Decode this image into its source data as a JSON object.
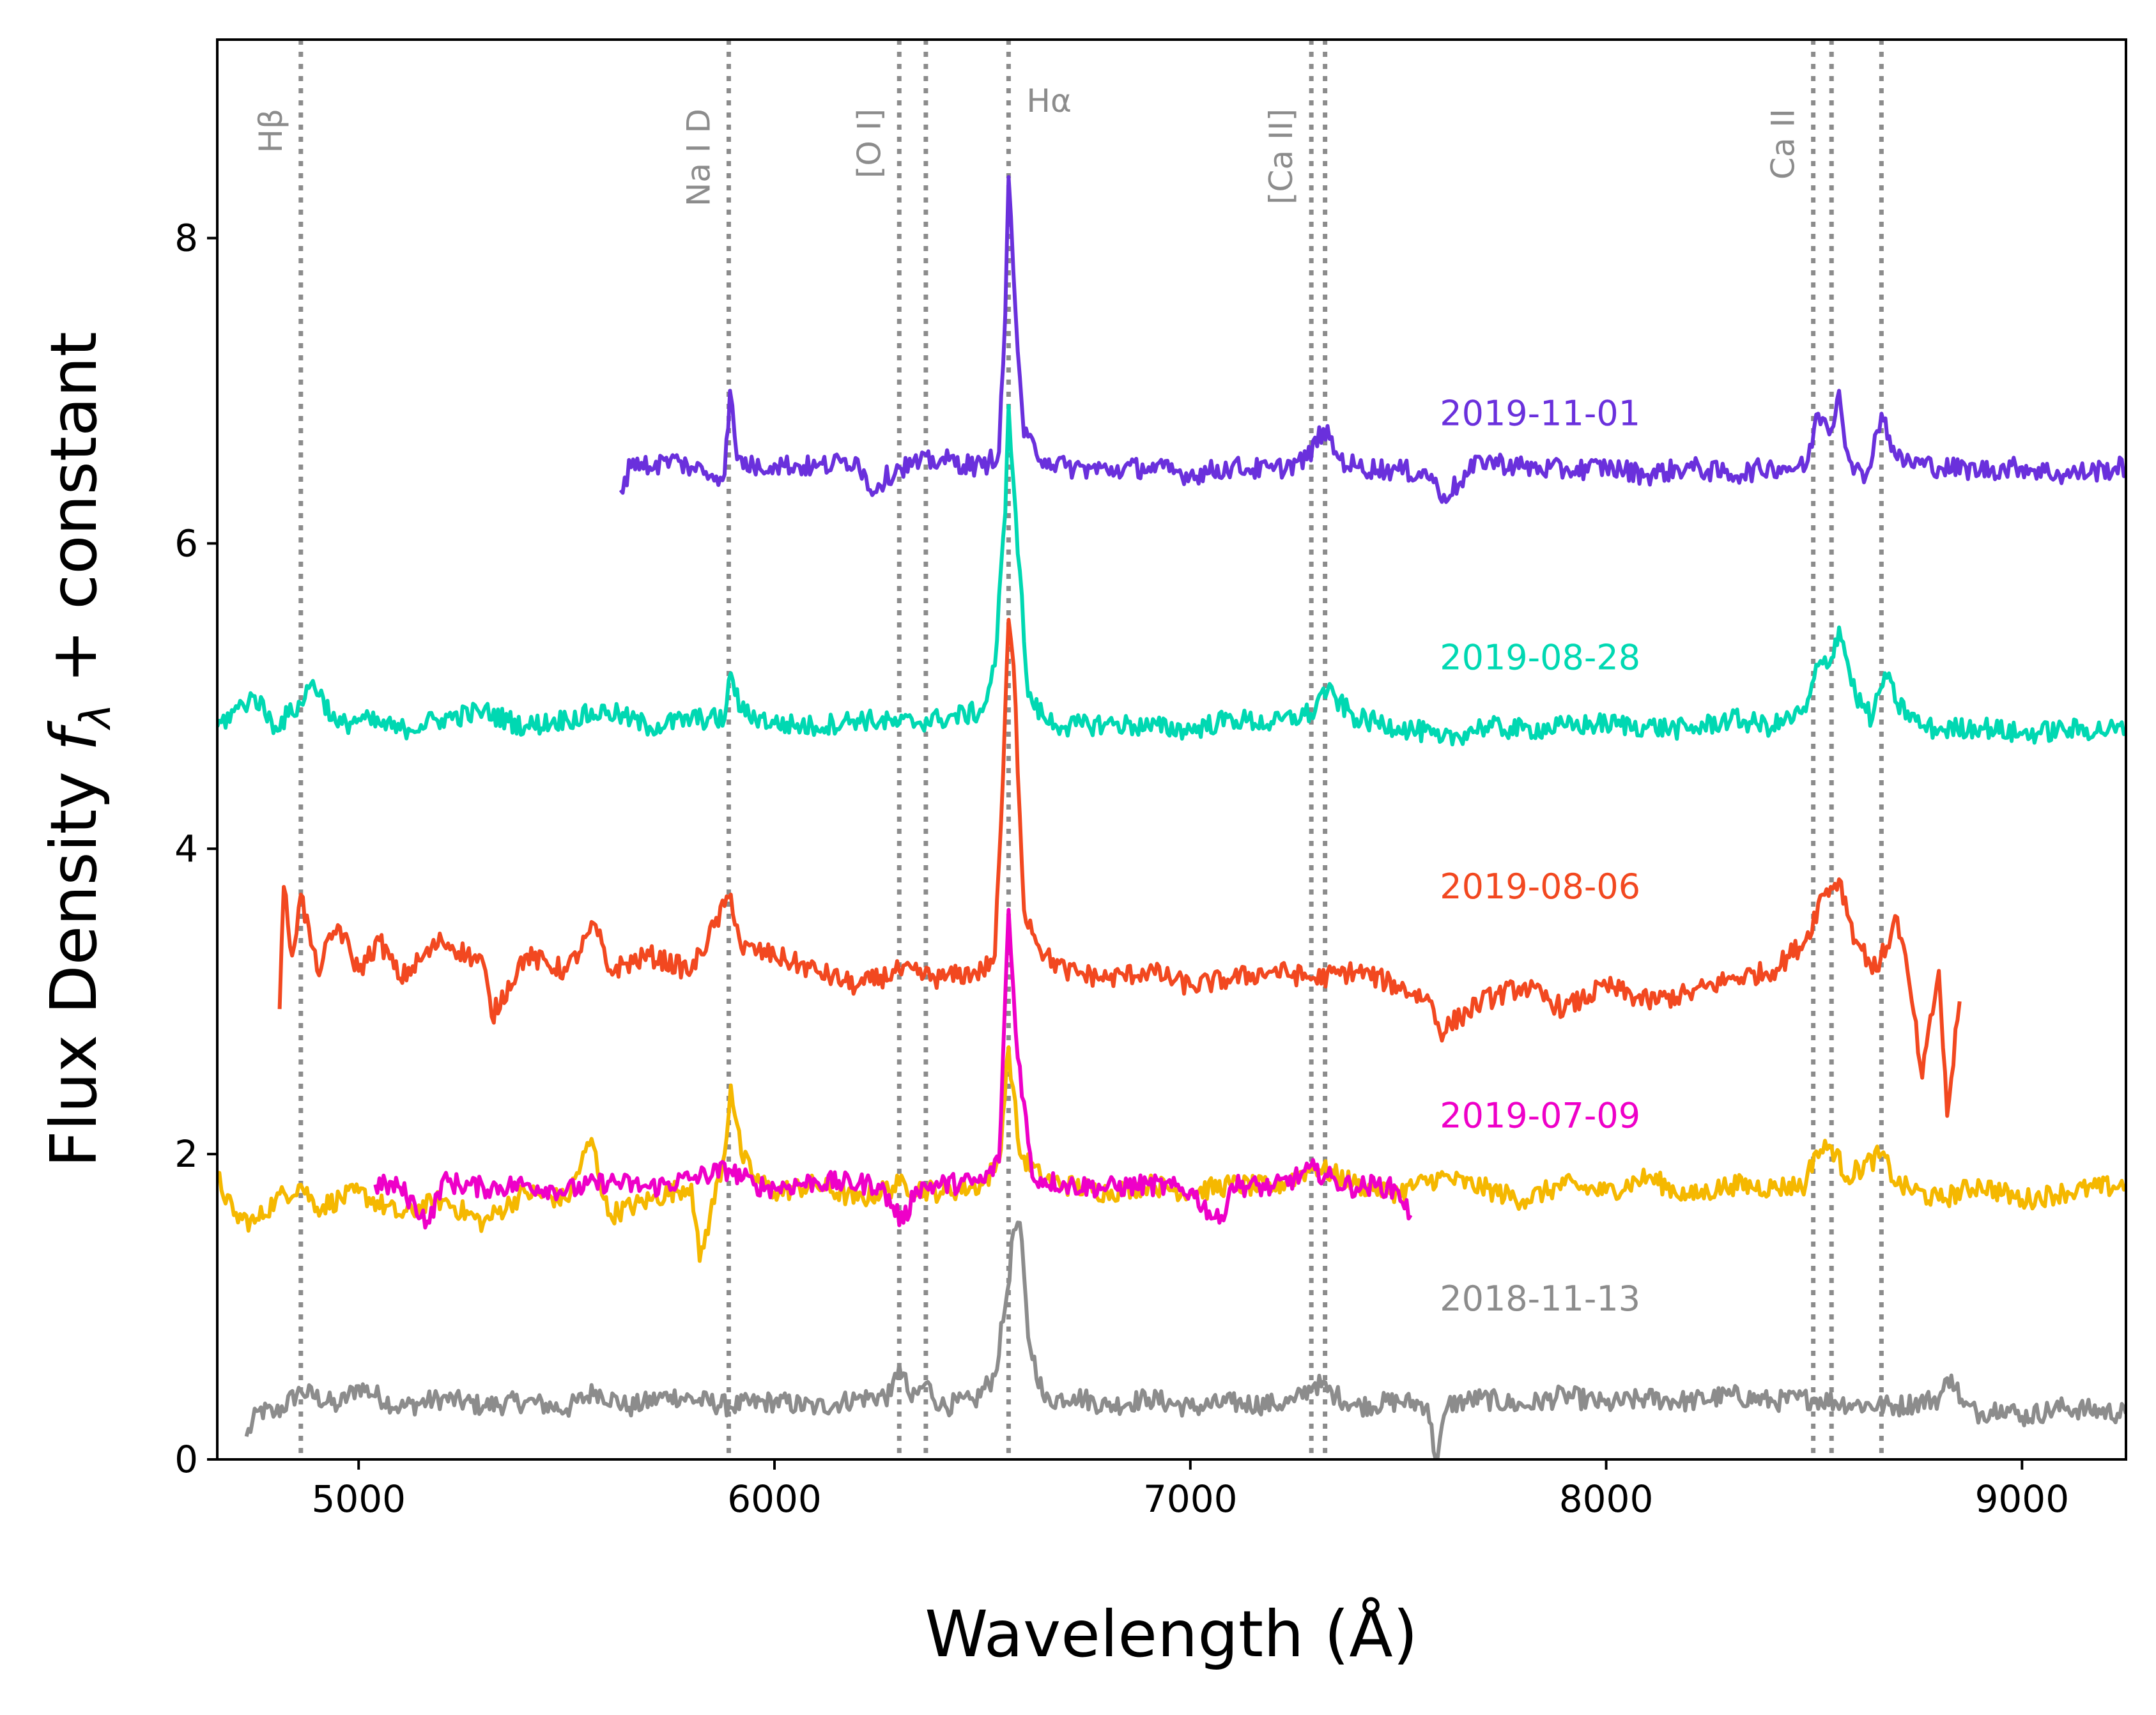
{
  "chart_data": {
    "type": "line",
    "xlabel": "Wavelength (Å)",
    "ylabel_prefix": "Flux Density ",
    "ylabel_var": "f",
    "ylabel_sub": "λ",
    "ylabel_suffix": " + constant",
    "xlim": [
      4660,
      9250
    ],
    "ylim": [
      0,
      9.3
    ],
    "xticks": [
      5000,
      6000,
      7000,
      8000,
      9000
    ],
    "yticks": [
      0,
      2,
      4,
      6,
      8
    ],
    "grid": false,
    "reference_lines": [
      {
        "wavelength": 4861,
        "label": "Hβ",
        "label_rotated": true
      },
      {
        "wavelength": 5890,
        "label": "Na I D",
        "label_rotated": true
      },
      {
        "wavelength": 6300,
        "label": "[O I]",
        "label_rotated": true
      },
      {
        "wavelength": 6364,
        "label": "",
        "label_rotated": true
      },
      {
        "wavelength": 6563,
        "label": "Hα",
        "label_rotated": false
      },
      {
        "wavelength": 7291,
        "label": "[Ca II]",
        "label_rotated": true
      },
      {
        "wavelength": 7324,
        "label": "",
        "label_rotated": true
      },
      {
        "wavelength": 8498,
        "label": "Ca II",
        "label_rotated": true
      },
      {
        "wavelength": 8542,
        "label": "",
        "label_rotated": true
      },
      {
        "wavelength": 8662,
        "label": "",
        "label_rotated": true
      }
    ],
    "series": [
      {
        "name": "2018-11-13",
        "color": "#8c8c8c",
        "label_color": "#8c8c8c",
        "label_y": 1.05,
        "show_label": true,
        "x": [
          4730,
          4760,
          4800,
          4861,
          4950,
          5000,
          5100,
          5200,
          5300,
          5400,
          5500,
          5570,
          5650,
          5750,
          5890,
          6000,
          6100,
          6200,
          6280,
          6300,
          6330,
          6364,
          6400,
          6480,
          6530,
          6560,
          6575,
          6590,
          6610,
          6650,
          6720,
          6800,
          6900,
          7000,
          7100,
          7200,
          7250,
          7300,
          7350,
          7400,
          7500,
          7570,
          7590,
          7620,
          7700,
          7800,
          7900,
          8000,
          8100,
          8200,
          8300,
          8400,
          8500,
          8600,
          8700,
          8800,
          8830,
          8860,
          8900,
          8950,
          9000,
          9100,
          9250
        ],
        "y": [
          0.15,
          0.32,
          0.3,
          0.45,
          0.35,
          0.48,
          0.34,
          0.4,
          0.35,
          0.38,
          0.33,
          0.45,
          0.34,
          0.42,
          0.35,
          0.38,
          0.34,
          0.4,
          0.42,
          0.62,
          0.38,
          0.5,
          0.35,
          0.38,
          0.55,
          1.1,
          1.5,
          1.55,
          0.8,
          0.38,
          0.42,
          0.35,
          0.4,
          0.34,
          0.37,
          0.36,
          0.38,
          0.5,
          0.42,
          0.35,
          0.38,
          0.36,
          0.0,
          0.36,
          0.4,
          0.35,
          0.42,
          0.36,
          0.4,
          0.38,
          0.42,
          0.38,
          0.4,
          0.36,
          0.35,
          0.4,
          0.55,
          0.35,
          0.3,
          0.35,
          0.28,
          0.34,
          0.3
        ]
      },
      {
        "name": "(unlabeled yellow spectrum)",
        "color": "#f5b800",
        "label_color": "#f5b800",
        "label_y": 0,
        "show_label": false,
        "x": [
          4660,
          4700,
          4750,
          4800,
          4861,
          4900,
          5000,
          5100,
          5200,
          5300,
          5400,
          5500,
          5560,
          5600,
          5700,
          5800,
          5820,
          5880,
          5895,
          5920,
          5950,
          6000,
          6100,
          6200,
          6300,
          6400,
          6500,
          6540,
          6563,
          6590,
          6640,
          6700,
          6800,
          6900,
          7000,
          7100,
          7200,
          7300,
          7400,
          7500,
          7600,
          7700,
          7800,
          7900,
          8000,
          8100,
          8200,
          8300,
          8400,
          8480,
          8500,
          8542,
          8580,
          8662,
          8700,
          8800,
          8900,
          9000,
          9100,
          9250
        ],
        "y": [
          1.85,
          1.6,
          1.55,
          1.7,
          1.8,
          1.65,
          1.75,
          1.6,
          1.7,
          1.55,
          1.75,
          1.7,
          2.1,
          1.6,
          1.7,
          1.8,
          1.3,
          2.0,
          2.45,
          2.0,
          1.85,
          1.75,
          1.8,
          1.7,
          1.8,
          1.75,
          1.8,
          1.95,
          2.7,
          2.0,
          1.85,
          1.8,
          1.75,
          1.8,
          1.75,
          1.8,
          1.78,
          1.92,
          1.8,
          1.75,
          1.85,
          1.78,
          1.7,
          1.8,
          1.75,
          1.85,
          1.72,
          1.8,
          1.78,
          1.8,
          2.0,
          2.05,
          1.85,
          2.0,
          1.8,
          1.7,
          1.8,
          1.7,
          1.75,
          1.8
        ]
      },
      {
        "name": "2019-07-09",
        "color": "#ee00c8",
        "label_color": "#ee00c8",
        "label_y": 2.25,
        "show_label": true,
        "x": [
          5040,
          5100,
          5170,
          5200,
          5300,
          5400,
          5500,
          5600,
          5700,
          5800,
          5890,
          5950,
          6000,
          6100,
          6250,
          6310,
          6340,
          6400,
          6500,
          6540,
          6563,
          6580,
          6620,
          6700,
          6800,
          6900,
          7000,
          7070,
          7100,
          7200,
          7300,
          7350,
          7400,
          7450,
          7500,
          7530
        ],
        "y": [
          1.8,
          1.78,
          1.55,
          1.82,
          1.78,
          1.8,
          1.76,
          1.82,
          1.78,
          1.84,
          1.9,
          1.8,
          1.78,
          1.82,
          1.8,
          1.55,
          1.78,
          1.8,
          1.82,
          1.95,
          3.6,
          2.8,
          1.85,
          1.8,
          1.78,
          1.8,
          1.76,
          1.55,
          1.8,
          1.78,
          1.9,
          1.82,
          1.78,
          1.8,
          1.76,
          1.6
        ]
      },
      {
        "name": "2019-08-06",
        "color": "#f24820",
        "label_color": "#f24820",
        "label_y": 3.75,
        "show_label": true,
        "x": [
          4810,
          4820,
          4840,
          4861,
          4900,
          4950,
          5000,
          5050,
          5100,
          5200,
          5300,
          5320,
          5400,
          5500,
          5570,
          5600,
          5700,
          5800,
          5895,
          5920,
          6000,
          6100,
          6200,
          6300,
          6400,
          6500,
          6530,
          6550,
          6563,
          6575,
          6600,
          6650,
          6700,
          6800,
          6900,
          7000,
          7100,
          7200,
          7300,
          7400,
          7500,
          7580,
          7600,
          7700,
          7800,
          7900,
          8000,
          8100,
          8200,
          8300,
          8400,
          8480,
          8520,
          8560,
          8600,
          8650,
          8700,
          8730,
          8760,
          8800,
          8820,
          8850
        ],
        "y": [
          2.95,
          3.75,
          3.3,
          3.7,
          3.2,
          3.5,
          3.2,
          3.4,
          3.15,
          3.4,
          3.25,
          2.9,
          3.3,
          3.2,
          3.5,
          3.2,
          3.3,
          3.2,
          3.7,
          3.35,
          3.3,
          3.2,
          3.1,
          3.2,
          3.15,
          3.2,
          3.3,
          4.5,
          5.5,
          5.2,
          3.6,
          3.3,
          3.2,
          3.15,
          3.2,
          3.1,
          3.15,
          3.2,
          3.15,
          3.2,
          3.1,
          3.0,
          2.8,
          3.0,
          3.1,
          2.95,
          3.1,
          3.0,
          3.05,
          3.15,
          3.2,
          3.4,
          3.7,
          3.8,
          3.4,
          3.2,
          3.55,
          3.1,
          2.5,
          3.2,
          2.25,
          3.0
        ]
      },
      {
        "name": "2019-08-28",
        "color": "#00d8b2",
        "label_color": "#00d8b2",
        "label_y": 5.25,
        "show_label": true,
        "x": [
          4660,
          4700,
          4750,
          4800,
          4861,
          4890,
          4950,
          5000,
          5100,
          5200,
          5300,
          5400,
          5500,
          5600,
          5700,
          5800,
          5880,
          5895,
          5920,
          6000,
          6100,
          6200,
          6300,
          6400,
          6500,
          6530,
          6555,
          6563,
          6580,
          6610,
          6650,
          6700,
          6800,
          6900,
          7000,
          7100,
          7200,
          7300,
          7320,
          7400,
          7500,
          7580,
          7600,
          7700,
          7800,
          7900,
          8000,
          8100,
          8200,
          8300,
          8400,
          8480,
          8510,
          8542,
          8560,
          8600,
          8640,
          8670,
          8700,
          8760,
          8800,
          8900,
          9000,
          9100,
          9250
        ],
        "y": [
          4.8,
          4.9,
          5.0,
          4.8,
          4.95,
          5.1,
          4.8,
          4.85,
          4.78,
          4.85,
          4.9,
          4.8,
          4.85,
          4.9,
          4.8,
          4.85,
          4.85,
          5.15,
          4.9,
          4.82,
          4.8,
          4.85,
          4.82,
          4.85,
          4.9,
          5.2,
          6.2,
          6.9,
          6.2,
          5.0,
          4.85,
          4.8,
          4.82,
          4.8,
          4.78,
          4.85,
          4.82,
          4.9,
          5.05,
          4.85,
          4.8,
          4.75,
          4.7,
          4.8,
          4.78,
          4.8,
          4.82,
          4.8,
          4.78,
          4.85,
          4.8,
          4.9,
          5.2,
          5.25,
          5.45,
          5.0,
          4.85,
          5.15,
          4.95,
          4.8,
          4.78,
          4.8,
          4.75,
          4.78,
          4.78
        ]
      },
      {
        "name": "2019-11-01",
        "color": "#6a30dc",
        "label_color": "#6a30dc",
        "label_y": 6.85,
        "show_label": true,
        "x": [
          5630,
          5660,
          5700,
          5750,
          5800,
          5850,
          5880,
          5893,
          5910,
          5950,
          6000,
          6100,
          6200,
          6230,
          6300,
          6400,
          6500,
          6540,
          6555,
          6563,
          6580,
          6600,
          6650,
          6700,
          6800,
          6900,
          7000,
          7100,
          7200,
          7280,
          7320,
          7360,
          7400,
          7500,
          7580,
          7600,
          7650,
          7700,
          7800,
          7900,
          8000,
          8100,
          8200,
          8300,
          8400,
          8480,
          8510,
          8542,
          8560,
          8580,
          8620,
          8662,
          8700,
          8800,
          8900,
          9000,
          9100,
          9250
        ],
        "y": [
          6.35,
          6.55,
          6.5,
          6.55,
          6.5,
          6.45,
          6.45,
          7.0,
          6.55,
          6.5,
          6.52,
          6.5,
          6.55,
          6.35,
          6.5,
          6.55,
          6.5,
          6.6,
          7.5,
          8.4,
          7.5,
          6.7,
          6.55,
          6.5,
          6.48,
          6.5,
          6.45,
          6.5,
          6.48,
          6.55,
          6.75,
          6.55,
          6.5,
          6.48,
          6.45,
          6.3,
          6.4,
          6.55,
          6.5,
          6.48,
          6.5,
          6.45,
          6.5,
          6.45,
          6.5,
          6.5,
          6.85,
          6.75,
          7.0,
          6.6,
          6.4,
          6.85,
          6.55,
          6.5,
          6.48,
          6.5,
          6.45,
          6.5
        ]
      }
    ]
  }
}
